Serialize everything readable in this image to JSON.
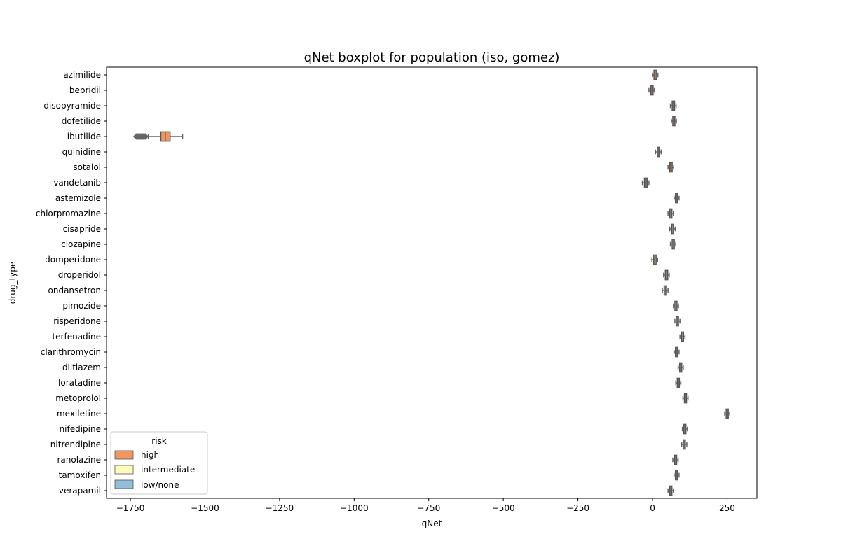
{
  "chart_data": {
    "type": "boxplot",
    "title": "qNet boxplot for population (iso, gomez)",
    "xlabel": "qNet",
    "ylabel": "drug_type",
    "xlim": [
      -1830,
      350
    ],
    "xticks": [
      -1750,
      -1500,
      -1250,
      -1000,
      -750,
      -500,
      -250,
      0,
      250
    ],
    "xtick_labels": [
      "−1750",
      "−1500",
      "−1250",
      "−1000",
      "−750",
      "−500",
      "−250",
      "0",
      "250"
    ],
    "grid": false,
    "legend": {
      "title": "risk",
      "placement": "lower-left",
      "entries": [
        {
          "label": "high",
          "color": "#f4955f"
        },
        {
          "label": "intermediate",
          "color": "#fdfdbd"
        },
        {
          "label": "low/none",
          "color": "#8fbfd9"
        }
      ]
    },
    "colors": {
      "median_and_whisker": "#666666",
      "box_edge": "#555555"
    },
    "drugs": [
      {
        "name": "azimilide",
        "risk": "high",
        "min": 0,
        "q1": 5,
        "median": 9,
        "q3": 14,
        "max": 18
      },
      {
        "name": "bepridil",
        "risk": "high",
        "min": -12,
        "q1": -6,
        "median": -2,
        "q3": 2,
        "max": 6
      },
      {
        "name": "disopyramide",
        "risk": "high",
        "min": 60,
        "q1": 66,
        "median": 70,
        "q3": 74,
        "max": 79
      },
      {
        "name": "dofetilide",
        "risk": "high",
        "min": 63,
        "q1": 68,
        "median": 72,
        "q3": 75,
        "max": 80
      },
      {
        "name": "ibutilide",
        "risk": "high",
        "min": -1690,
        "q1": -1648,
        "median": -1633,
        "q3": -1617,
        "max": -1575,
        "outliers_range": [
          -1730,
          -1700
        ]
      },
      {
        "name": "quinidine",
        "risk": "high",
        "min": 10,
        "q1": 16,
        "median": 20,
        "q3": 24,
        "max": 29
      },
      {
        "name": "sotalol",
        "risk": "high",
        "min": 52,
        "q1": 58,
        "median": 62,
        "q3": 66,
        "max": 71
      },
      {
        "name": "vandetanib",
        "risk": "high",
        "min": -34,
        "q1": -27,
        "median": -22,
        "q3": -18,
        "max": -12
      },
      {
        "name": "astemizole",
        "risk": "intermediate",
        "min": 72,
        "q1": 77,
        "median": 81,
        "q3": 84,
        "max": 89
      },
      {
        "name": "chlorpromazine",
        "risk": "intermediate",
        "min": 52,
        "q1": 58,
        "median": 62,
        "q3": 65,
        "max": 70
      },
      {
        "name": "cisapride",
        "risk": "intermediate",
        "min": 58,
        "q1": 64,
        "median": 68,
        "q3": 71,
        "max": 76
      },
      {
        "name": "clozapine",
        "risk": "intermediate",
        "min": 60,
        "q1": 66,
        "median": 70,
        "q3": 73,
        "max": 78
      },
      {
        "name": "domperidone",
        "risk": "intermediate",
        "min": -2,
        "q1": 4,
        "median": 8,
        "q3": 12,
        "max": 17
      },
      {
        "name": "droperidol",
        "risk": "intermediate",
        "min": 37,
        "q1": 43,
        "median": 47,
        "q3": 51,
        "max": 56
      },
      {
        "name": "ondansetron",
        "risk": "intermediate",
        "min": 33,
        "q1": 39,
        "median": 43,
        "q3": 47,
        "max": 52
      },
      {
        "name": "pimozide",
        "risk": "intermediate",
        "min": 70,
        "q1": 75,
        "median": 79,
        "q3": 82,
        "max": 87
      },
      {
        "name": "risperidone",
        "risk": "intermediate",
        "min": 75,
        "q1": 80,
        "median": 84,
        "q3": 87,
        "max": 92
      },
      {
        "name": "terfenadine",
        "risk": "intermediate",
        "min": 92,
        "q1": 97,
        "median": 101,
        "q3": 104,
        "max": 109
      },
      {
        "name": "clarithromycin",
        "risk": "intermediate",
        "min": 72,
        "q1": 77,
        "median": 81,
        "q3": 84,
        "max": 89
      },
      {
        "name": "diltiazem",
        "risk": "low/none",
        "min": 86,
        "q1": 91,
        "median": 95,
        "q3": 98,
        "max": 103
      },
      {
        "name": "loratadine",
        "risk": "low/none",
        "min": 78,
        "q1": 83,
        "median": 87,
        "q3": 90,
        "max": 95
      },
      {
        "name": "metoprolol",
        "risk": "low/none",
        "min": 102,
        "q1": 107,
        "median": 111,
        "q3": 114,
        "max": 119
      },
      {
        "name": "mexiletine",
        "risk": "low/none",
        "min": 242,
        "q1": 247,
        "median": 251,
        "q3": 254,
        "max": 259
      },
      {
        "name": "nifedipine",
        "risk": "low/none",
        "min": 100,
        "q1": 105,
        "median": 109,
        "q3": 112,
        "max": 117
      },
      {
        "name": "nitrendipine",
        "risk": "low/none",
        "min": 98,
        "q1": 103,
        "median": 107,
        "q3": 110,
        "max": 115
      },
      {
        "name": "ranolazine",
        "risk": "low/none",
        "min": 68,
        "q1": 74,
        "median": 78,
        "q3": 81,
        "max": 86
      },
      {
        "name": "tamoxifen",
        "risk": "low/none",
        "min": 72,
        "q1": 77,
        "median": 81,
        "q3": 84,
        "max": 89
      },
      {
        "name": "verapamil",
        "risk": "low/none",
        "min": 52,
        "q1": 58,
        "median": 62,
        "q3": 65,
        "max": 70
      }
    ]
  }
}
